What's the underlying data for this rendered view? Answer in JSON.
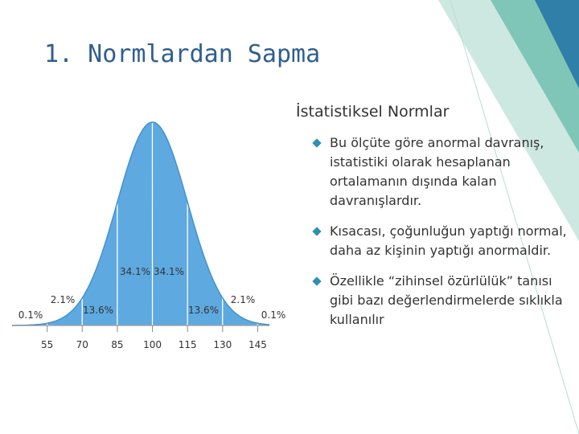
{
  "title": "1. Normlardan Sapma",
  "subtitle": "İstatistiksel Normlar",
  "bullets": [
    "Bu ölçüte göre anormal davranış, istatistiki olarak hesaplanan ortalamanın dışında kalan davranışlardır.",
    "Kısacası, çoğunluğun yaptığı normal, daha az kişinin yaptığı anormaldir.",
    "Özellikle “zihinsel özürlülük” tanısı gibi bazı değerlendirmelerde sıklıkla kullanılır"
  ],
  "chart_data": {
    "type": "normal",
    "values": [
      0.1,
      2.1,
      13.6,
      34.1,
      34.1,
      13.6,
      2.1,
      0.1
    ],
    "value_labels": [
      "0.1%",
      "2.1%",
      "13.6%",
      "34.1%",
      "34.1%",
      "13.6%",
      "2.1%",
      "0.1%"
    ],
    "xlim": [
      40,
      150
    ],
    "xticks": [
      55,
      70,
      85,
      100,
      115,
      130,
      145
    ],
    "color": "#5ea9e0"
  }
}
